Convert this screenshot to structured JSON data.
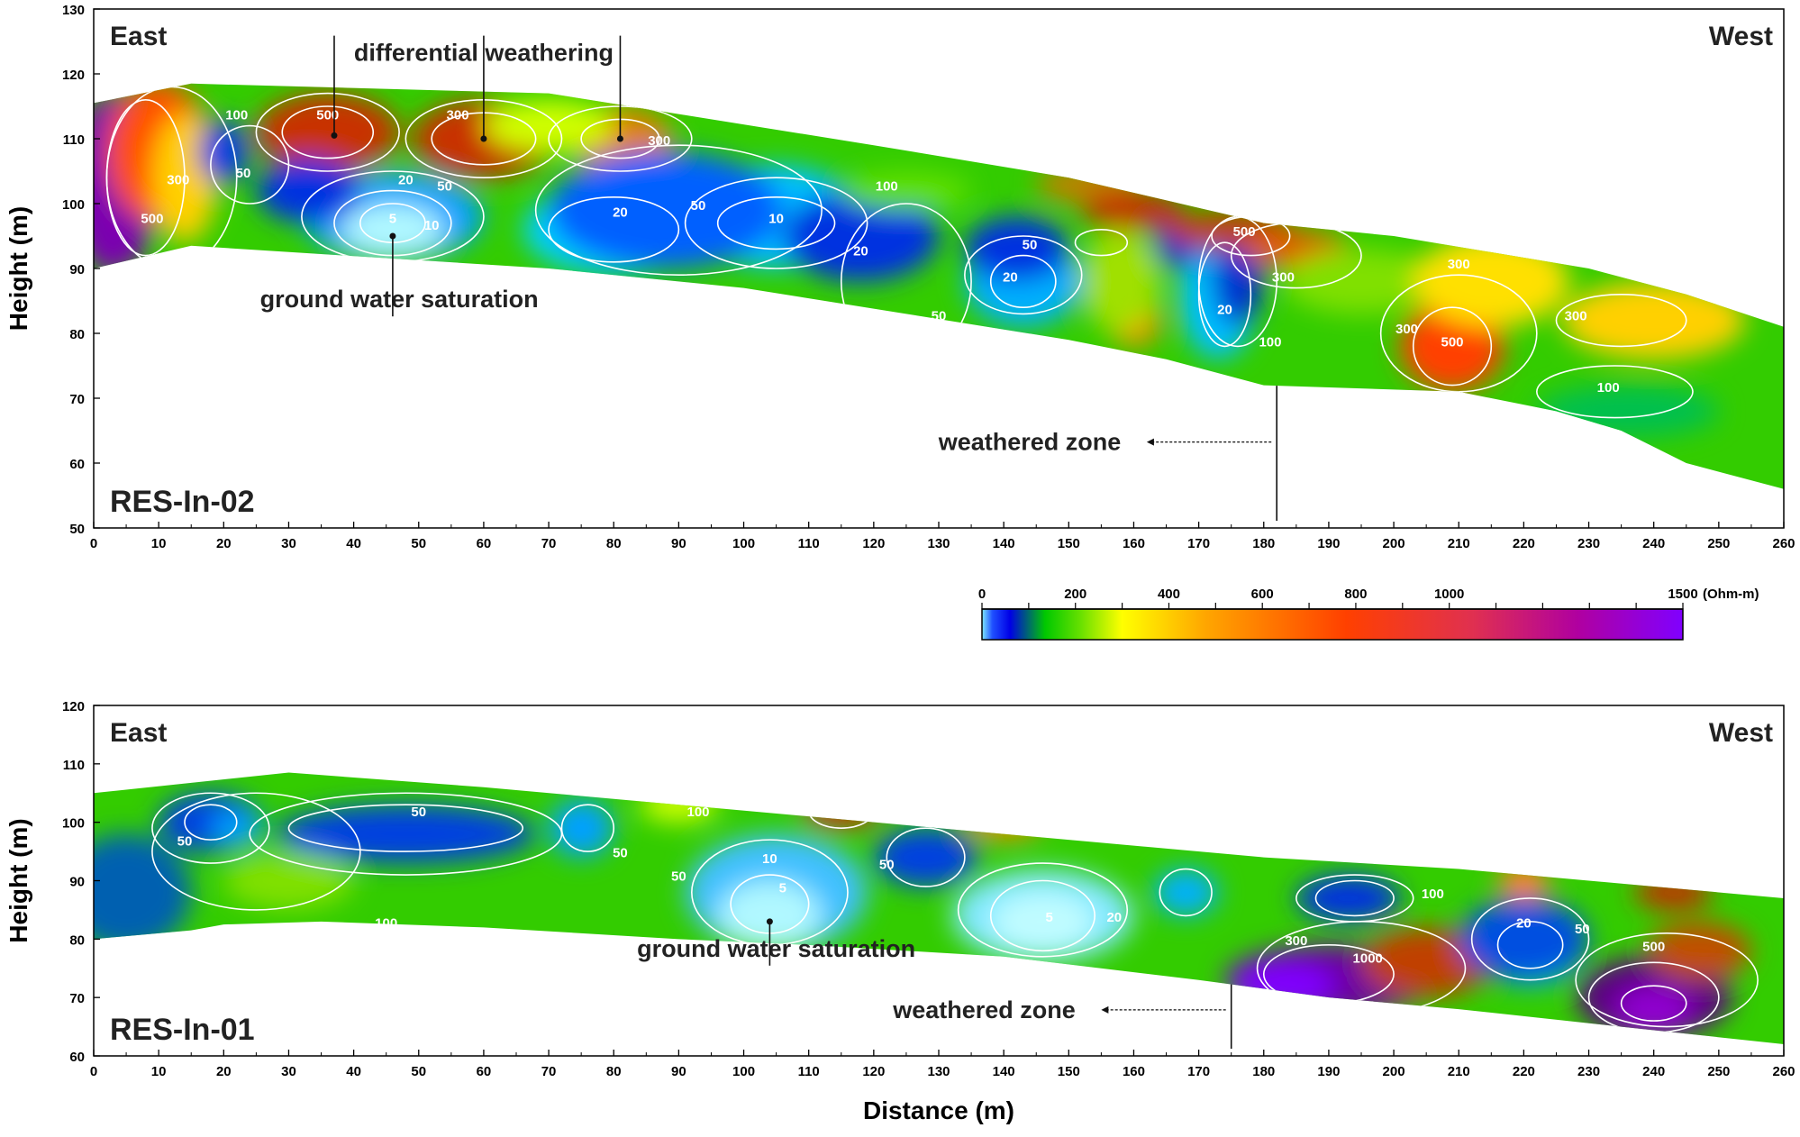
{
  "chart_data": [
    {
      "type": "heatmap",
      "panel_label": "RES-In-02",
      "left_label": "East",
      "right_label": "West",
      "ylabel": "Height (m)",
      "xlim": [
        0,
        260
      ],
      "ylim": [
        50,
        130
      ],
      "x_ticks": [
        0,
        10,
        20,
        30,
        40,
        50,
        60,
        70,
        80,
        90,
        100,
        110,
        120,
        130,
        140,
        150,
        160,
        170,
        180,
        190,
        200,
        210,
        220,
        230,
        240,
        250,
        260
      ],
      "y_ticks": [
        50,
        60,
        70,
        80,
        90,
        100,
        110,
        120,
        130
      ],
      "surface": [
        [
          0,
          115.5
        ],
        [
          15,
          118.5
        ],
        [
          70,
          117
        ],
        [
          120,
          109
        ],
        [
          150,
          104
        ],
        [
          180,
          97
        ],
        [
          200,
          95
        ],
        [
          230,
          90
        ],
        [
          245,
          86
        ],
        [
          260,
          81
        ]
      ],
      "bottom": [
        [
          0,
          90
        ],
        [
          15,
          93.5
        ],
        [
          70,
          90
        ],
        [
          100,
          87
        ],
        [
          125,
          83
        ],
        [
          150,
          79
        ],
        [
          165,
          76
        ],
        [
          180,
          72
        ],
        [
          210,
          71
        ],
        [
          225,
          68
        ],
        [
          235,
          65
        ],
        [
          245,
          60
        ],
        [
          260,
          56
        ]
      ],
      "annotations": [
        {
          "text": "differential weathering",
          "x": 60,
          "y": 122,
          "points": [
            [
              37,
              110.5
            ],
            [
              60,
              110
            ],
            [
              81,
              110
            ]
          ]
        },
        {
          "text": "ground water saturation",
          "x": 47,
          "y": 84,
          "points": [
            [
              46,
              95
            ]
          ]
        },
        {
          "text": "weathered zone",
          "x": 144,
          "y": 62,
          "arrow_to": 162,
          "line_x": 182
        }
      ],
      "contour_labels": [
        {
          "text": "100",
          "x": 22,
          "y": 113
        },
        {
          "text": "300",
          "x": 13,
          "y": 103
        },
        {
          "text": "500",
          "x": 9,
          "y": 97
        },
        {
          "text": "50",
          "x": 23,
          "y": 104
        },
        {
          "text": "500",
          "x": 36,
          "y": 113
        },
        {
          "text": "300",
          "x": 56,
          "y": 113
        },
        {
          "text": "300",
          "x": 87,
          "y": 109
        },
        {
          "text": "20",
          "x": 48,
          "y": 103
        },
        {
          "text": "50",
          "x": 54,
          "y": 102
        },
        {
          "text": "5",
          "x": 46,
          "y": 97
        },
        {
          "text": "10",
          "x": 52,
          "y": 96
        },
        {
          "text": "20",
          "x": 81,
          "y": 98
        },
        {
          "text": "50",
          "x": 93,
          "y": 99
        },
        {
          "text": "10",
          "x": 105,
          "y": 97
        },
        {
          "text": "100",
          "x": 122,
          "y": 102
        },
        {
          "text": "20",
          "x": 118,
          "y": 92
        },
        {
          "text": "50",
          "x": 144,
          "y": 93
        },
        {
          "text": "20",
          "x": 141,
          "y": 88
        },
        {
          "text": "50",
          "x": 130,
          "y": 82
        },
        {
          "text": "20",
          "x": 174,
          "y": 83
        },
        {
          "text": "100",
          "x": 181,
          "y": 78
        },
        {
          "text": "500",
          "x": 177,
          "y": 95
        },
        {
          "text": "300",
          "x": 183,
          "y": 88
        },
        {
          "text": "300",
          "x": 210,
          "y": 90
        },
        {
          "text": "300",
          "x": 202,
          "y": 80
        },
        {
          "text": "500",
          "x": 209,
          "y": 78
        },
        {
          "text": "300",
          "x": 228,
          "y": 82
        },
        {
          "text": "100",
          "x": 233,
          "y": 71
        }
      ]
    },
    {
      "type": "heatmap",
      "panel_label": "RES-In-01",
      "left_label": "East",
      "right_label": "West",
      "ylabel": "Height (m)",
      "xlabel": "Distance (m)",
      "xlim": [
        0,
        260
      ],
      "ylim": [
        60,
        120
      ],
      "x_ticks": [
        0,
        10,
        20,
        30,
        40,
        50,
        60,
        70,
        80,
        90,
        100,
        110,
        120,
        130,
        140,
        150,
        160,
        170,
        180,
        190,
        200,
        210,
        220,
        230,
        240,
        250,
        260
      ],
      "y_ticks": [
        60,
        70,
        80,
        90,
        100,
        110,
        120
      ],
      "surface": [
        [
          0,
          105
        ],
        [
          30,
          108.5
        ],
        [
          60,
          106
        ],
        [
          90,
          103
        ],
        [
          120,
          100
        ],
        [
          150,
          97
        ],
        [
          180,
          94
        ],
        [
          210,
          92
        ],
        [
          240,
          89
        ],
        [
          260,
          87
        ]
      ],
      "bottom": [
        [
          0,
          80
        ],
        [
          15,
          81.5
        ],
        [
          20,
          82.5
        ],
        [
          35,
          83
        ],
        [
          60,
          82
        ],
        [
          90,
          80
        ],
        [
          110,
          79
        ],
        [
          140,
          77
        ],
        [
          170,
          73
        ],
        [
          190,
          70
        ],
        [
          210,
          68
        ],
        [
          235,
          65
        ],
        [
          260,
          62
        ]
      ],
      "annotations": [
        {
          "text": "ground water saturation",
          "x": 105,
          "y": 77,
          "points": [
            [
              104,
              83
            ]
          ]
        },
        {
          "text": "weathered zone",
          "x": 137,
          "y": 66.5,
          "arrow_to": 155,
          "line_x": 175
        }
      ],
      "contour_labels": [
        {
          "text": "50",
          "x": 14,
          "y": 96
        },
        {
          "text": "50",
          "x": 50,
          "y": 101
        },
        {
          "text": "50",
          "x": 81,
          "y": 94
        },
        {
          "text": "100",
          "x": 93,
          "y": 101
        },
        {
          "text": "50",
          "x": 90,
          "y": 90
        },
        {
          "text": "10",
          "x": 104,
          "y": 93
        },
        {
          "text": "5",
          "x": 106,
          "y": 88
        },
        {
          "text": "50",
          "x": 122,
          "y": 92
        },
        {
          "text": "100",
          "x": 45,
          "y": 82
        },
        {
          "text": "5",
          "x": 147,
          "y": 83
        },
        {
          "text": "20",
          "x": 157,
          "y": 83
        },
        {
          "text": "300",
          "x": 185,
          "y": 79
        },
        {
          "text": "1000",
          "x": 196,
          "y": 76
        },
        {
          "text": "100",
          "x": 206,
          "y": 87
        },
        {
          "text": "20",
          "x": 220,
          "y": 82
        },
        {
          "text": "50",
          "x": 229,
          "y": 81
        },
        {
          "text": "500",
          "x": 240,
          "y": 78
        }
      ]
    }
  ],
  "colorbar": {
    "unit": "(Ohm-m)",
    "ticks": [
      "0",
      "200",
      "400",
      "600",
      "800",
      "1000",
      "1500"
    ],
    "min": 0,
    "max": 1500,
    "colors": [
      "#7fe9ff",
      "#0000e6",
      "#00c800",
      "#ffff00",
      "#ff4000",
      "#b00060",
      "#8000ff"
    ]
  }
}
